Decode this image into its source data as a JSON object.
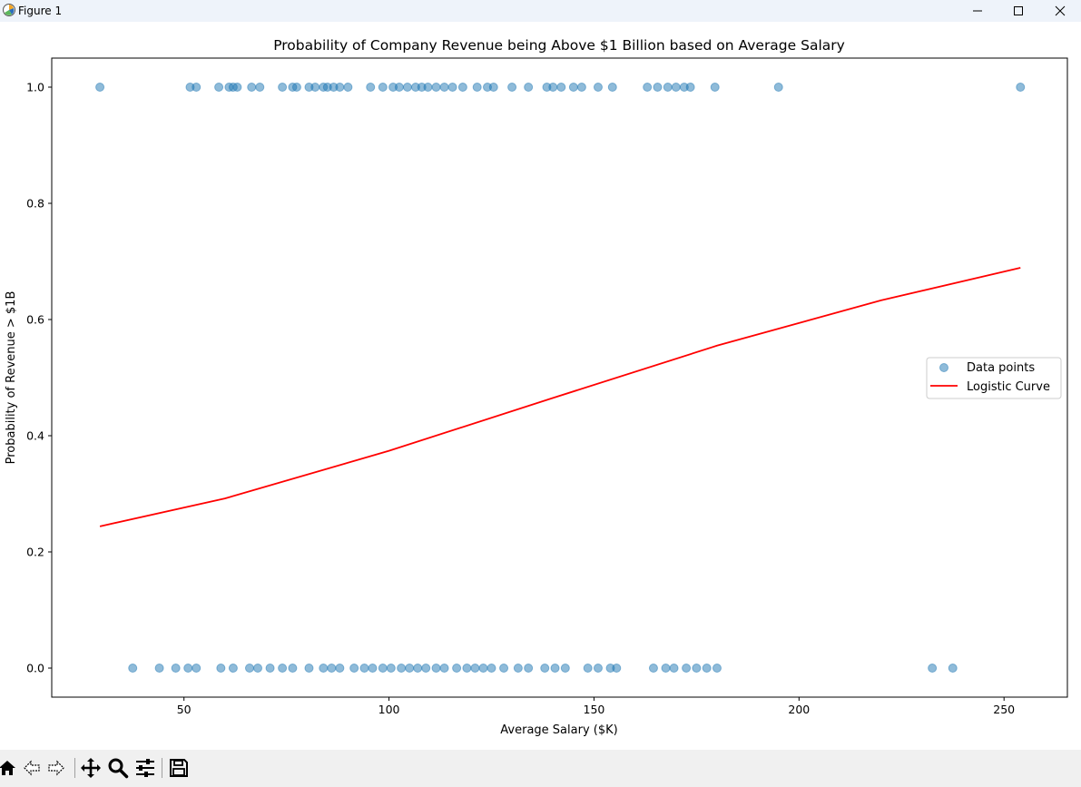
{
  "window": {
    "title": "Figure 1",
    "icon": "matplotlib-icon",
    "controls": [
      "minimize-icon",
      "maximize-icon",
      "close-icon"
    ]
  },
  "toolbar": {
    "buttons": [
      "home-icon",
      "back-icon",
      "forward-icon",
      "pan-icon",
      "zoom-icon",
      "configure-subplots-icon",
      "save-icon"
    ]
  },
  "chart_data": {
    "type": "scatter",
    "title": "Probability of Company Revenue being Above $1 Billion based on Average Salary",
    "xlabel": "Average Salary ($K)",
    "ylabel": "Probability of Revenue > $1B",
    "xlim": [
      17.75,
      265.45
    ],
    "ylim": [
      -0.05,
      1.05
    ],
    "xticks": [
      50,
      100,
      150,
      200,
      250
    ],
    "yticks": [
      0.0,
      0.2,
      0.4,
      0.6,
      0.8,
      1.0
    ],
    "xtick_labels": [
      "50",
      "100",
      "150",
      "200",
      "250"
    ],
    "ytick_labels": [
      "0.0",
      "0.2",
      "0.4",
      "0.6",
      "0.8",
      "1.0"
    ],
    "grid": false,
    "legend": {
      "placement": "center-right",
      "entries": [
        "Data points",
        "Logistic Curve"
      ]
    },
    "colors": {
      "points": "#1f77b4",
      "curve": "#ff0000"
    },
    "series": [
      {
        "name": "Data points",
        "kind": "scatter",
        "x": [
          29.5,
          51.5,
          53,
          58.5,
          61,
          62,
          63,
          66.5,
          68.5,
          74,
          76.5,
          77.5,
          80.5,
          82,
          84,
          85,
          86.5,
          88,
          90,
          95.5,
          98.5,
          101,
          102.5,
          104.5,
          106.5,
          108,
          109.5,
          111.5,
          113.5,
          115.5,
          118,
          121.5,
          124,
          125.5,
          130,
          134,
          138.5,
          140,
          142,
          145,
          147,
          151,
          154.5,
          163,
          165.5,
          168,
          170,
          172,
          173.5,
          179.5,
          195,
          254,
          37.5,
          44,
          48,
          51,
          53,
          59,
          62,
          66,
          68,
          71,
          74,
          76.5,
          80.5,
          84,
          86,
          88,
          91.5,
          94,
          96,
          98.5,
          100.5,
          103,
          105,
          107,
          109,
          111.5,
          113.5,
          116.5,
          119,
          121,
          123,
          125,
          128,
          131.5,
          134,
          138,
          140.5,
          143,
          148.5,
          151,
          154,
          155.5,
          164.5,
          167.5,
          169.5,
          172.5,
          175,
          177.5,
          180,
          232.5,
          237.5
        ],
        "y": [
          1,
          1,
          1,
          1,
          1,
          1,
          1,
          1,
          1,
          1,
          1,
          1,
          1,
          1,
          1,
          1,
          1,
          1,
          1,
          1,
          1,
          1,
          1,
          1,
          1,
          1,
          1,
          1,
          1,
          1,
          1,
          1,
          1,
          1,
          1,
          1,
          1,
          1,
          1,
          1,
          1,
          1,
          1,
          1,
          1,
          1,
          1,
          1,
          1,
          1,
          1,
          1,
          0,
          0,
          0,
          0,
          0,
          0,
          0,
          0,
          0,
          0,
          0,
          0,
          0,
          0,
          0,
          0,
          0,
          0,
          0,
          0,
          0,
          0,
          0,
          0,
          0,
          0,
          0,
          0,
          0,
          0,
          0,
          0,
          0,
          0,
          0,
          0,
          0,
          0,
          0,
          0,
          0,
          0,
          0,
          0,
          0,
          0,
          0,
          0,
          0,
          0,
          0
        ]
      },
      {
        "name": "Logistic Curve",
        "kind": "line",
        "x": [
          29.5,
          60,
          100,
          140,
          180,
          220,
          254
        ],
        "y": [
          0.244,
          0.292,
          0.374,
          0.465,
          0.555,
          0.633,
          0.689
        ]
      }
    ]
  }
}
